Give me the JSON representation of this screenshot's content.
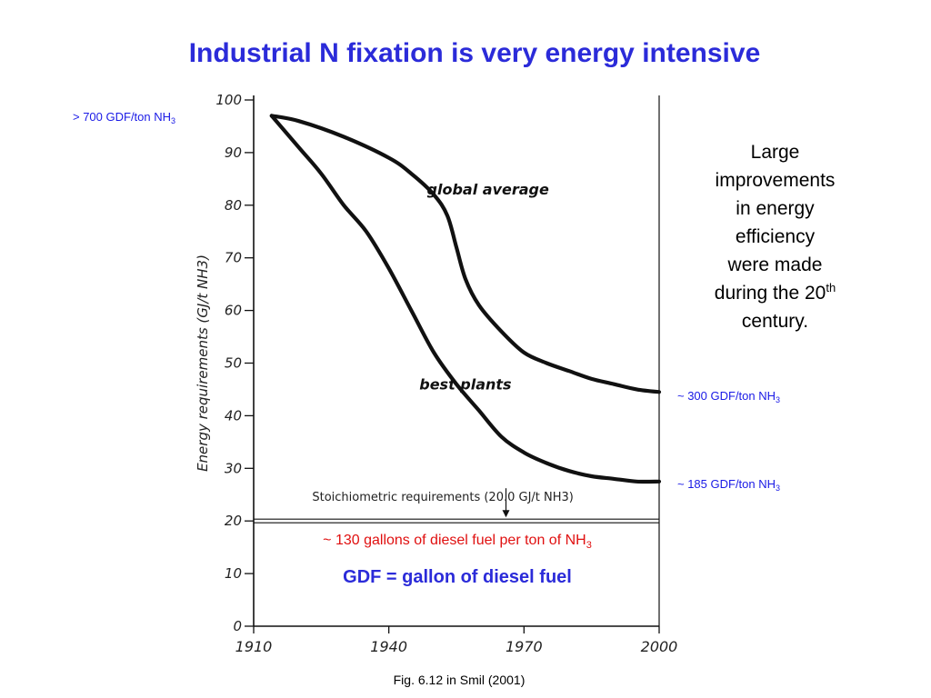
{
  "slide": {
    "title": "Industrial N fixation is very energy intensive",
    "caption": "Fig. 6.12 in Smil  (2001)"
  },
  "annotations": {
    "top_left_prefix": "> 700 GDF/ton NH",
    "top_left_sub": "3",
    "global_end_prefix": "~ 300 GDF/ton NH",
    "global_end_sub": "3",
    "best_end_prefix": "~ 185 GDF/ton NH",
    "best_end_sub": "3",
    "diesel_prefix": "~ 130 gallons of diesel fuel per ton of NH",
    "diesel_sub": "3",
    "gdf_definition": "GDF = gallon of diesel fuel"
  },
  "side_note": {
    "line1": "Large",
    "line2": "improvements",
    "line3": "in energy",
    "line4": "efficiency",
    "line5": "were made",
    "line6_prefix": "during the 20",
    "line6_sup": "th",
    "line7": "century."
  },
  "colors": {
    "title": "#2b2bd9",
    "annotation": "#1a1ae6",
    "diesel_note": "#e01010",
    "curves": "#111111"
  },
  "chart_data": {
    "type": "line",
    "xlim": [
      1910,
      2000
    ],
    "ylim": [
      0,
      100
    ],
    "x_ticks": [
      "1910",
      "1940",
      "1970",
      "2000"
    ],
    "y_ticks": [
      "0",
      "10",
      "20",
      "30",
      "40",
      "50",
      "60",
      "70",
      "80",
      "90",
      "100"
    ],
    "ylabel": "Energy requirements (GJ/t NH3)",
    "series": [
      {
        "name": "global average",
        "x": [
          1914,
          1920,
          1930,
          1940,
          1945,
          1950,
          1953,
          1955,
          1957,
          1960,
          1965,
          1970,
          1975,
          1980,
          1985,
          1990,
          1995,
          2000
        ],
        "y": [
          97,
          96,
          93,
          89,
          86,
          82,
          78,
          72,
          66,
          61,
          56,
          52,
          50,
          48.5,
          47,
          46,
          45,
          44.5
        ]
      },
      {
        "name": "best plants",
        "x": [
          1914,
          1920,
          1925,
          1930,
          1935,
          1940,
          1945,
          1950,
          1955,
          1960,
          1965,
          1970,
          1975,
          1980,
          1985,
          1990,
          1995,
          2000
        ],
        "y": [
          97,
          91,
          86,
          80,
          75,
          68,
          60,
          52,
          46,
          41,
          36,
          33,
          31,
          29.5,
          28.5,
          28,
          27.5,
          27.5
        ]
      }
    ],
    "reference_line": {
      "label": "Stoichiometric requirements (20.0 GJ/t NH3)",
      "y": 20
    }
  }
}
